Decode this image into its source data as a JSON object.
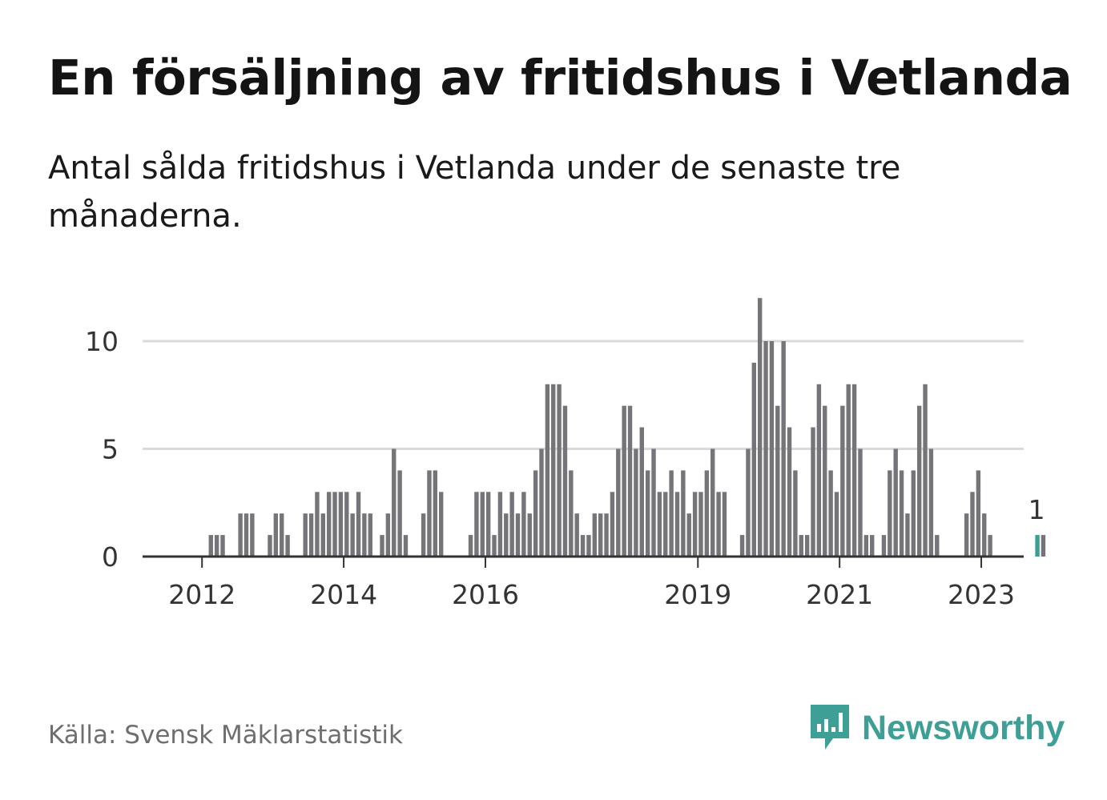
{
  "title": "En försäljning av fritidshus i Vetlanda",
  "subtitle": "Antal sålda fritidshus i Vetlanda under de senaste tre månaderna.",
  "source": "Källa: Svensk Mäklarstatistik",
  "brand": "Newsworthy",
  "colors": {
    "bar": "#757478",
    "highlight": "#3a9e92",
    "grid": "#dadada",
    "axis": "#333333",
    "brand": "#3e9f97"
  },
  "chart_data": {
    "type": "bar",
    "title": "",
    "xlabel": "",
    "ylabel": "",
    "ylim": [
      0,
      12
    ],
    "yticks": [
      0,
      5,
      10
    ],
    "xtick_labels": [
      "2012",
      "2014",
      "2016",
      "2019",
      "2021",
      "2023"
    ],
    "x_start": "2011-03",
    "x_end": "2023-04",
    "series": [
      {
        "values": [
          0,
          0,
          0,
          0,
          0,
          0,
          0,
          0,
          0,
          0,
          0,
          1,
          1,
          1,
          0,
          0,
          2,
          2,
          2,
          0,
          0,
          1,
          2,
          2,
          1,
          0,
          0,
          2,
          2,
          3,
          2,
          3,
          3,
          3,
          3,
          2,
          3,
          2,
          2,
          0,
          1,
          2,
          5,
          4,
          1,
          0,
          0,
          2,
          4,
          4,
          3,
          0,
          0,
          0,
          0,
          1,
          3,
          3,
          3,
          1,
          3,
          2,
          3,
          2,
          3,
          2,
          4,
          5,
          8,
          8,
          8,
          7,
          4,
          2,
          1,
          1,
          2,
          2,
          2,
          3,
          5,
          7,
          7,
          5,
          6,
          4,
          5,
          3,
          3,
          4,
          3,
          4,
          2,
          3,
          3,
          4,
          5,
          3,
          3,
          0,
          0,
          1,
          5,
          9,
          12,
          10,
          10,
          7,
          10,
          6,
          4,
          1,
          1,
          6,
          8,
          7,
          4,
          3,
          7,
          8,
          8,
          5,
          1,
          1,
          0,
          1,
          4,
          5,
          4,
          2,
          4,
          7,
          8,
          5,
          1,
          0,
          0,
          0,
          0,
          2,
          3,
          4,
          2,
          1,
          0,
          0,
          0,
          0,
          0,
          0,
          0,
          1,
          1
        ]
      }
    ],
    "highlight_index": 151,
    "highlight_label": "1"
  }
}
